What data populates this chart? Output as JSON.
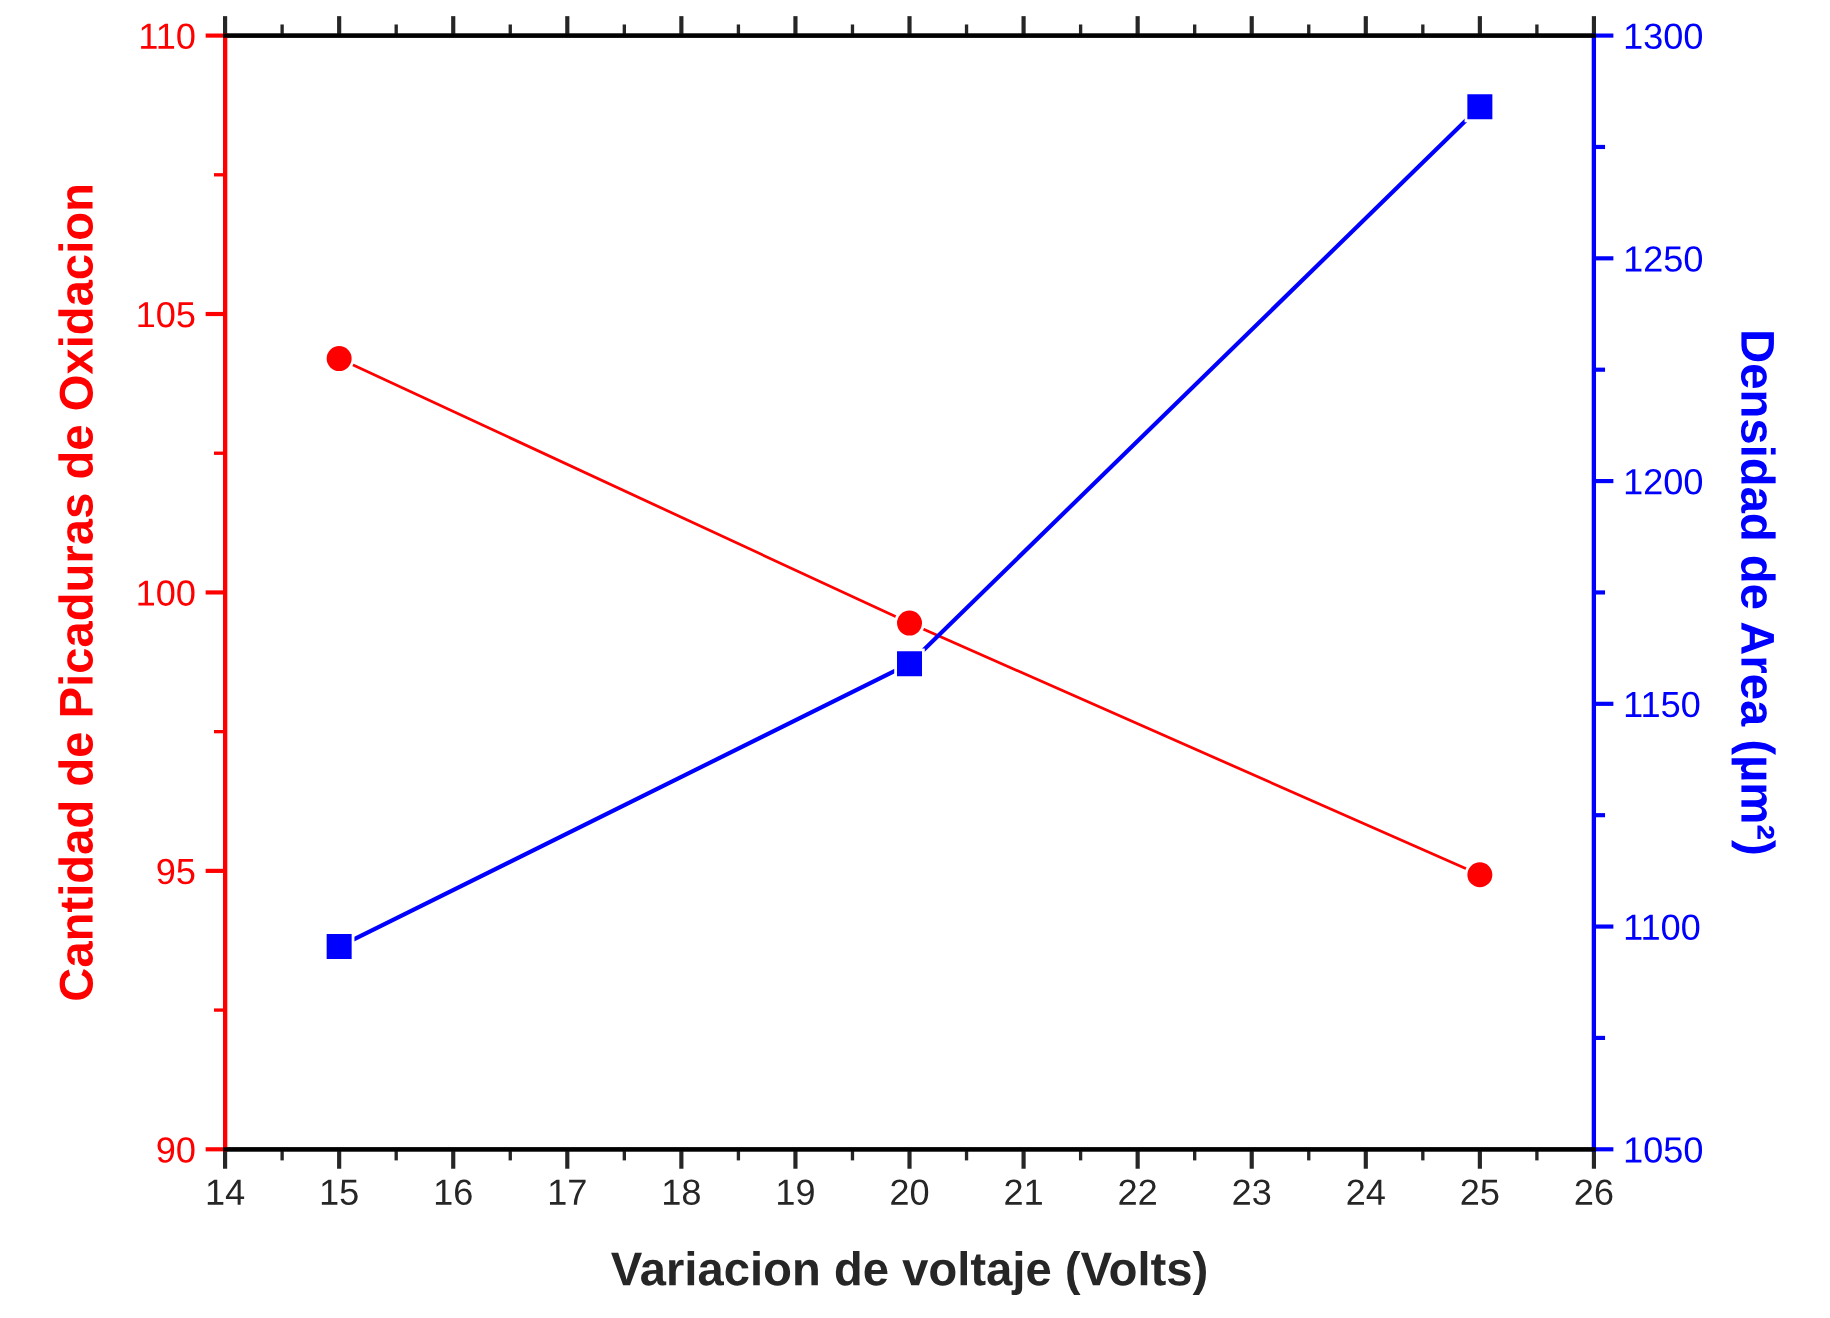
{
  "chart_data": {
    "type": "line",
    "xlabel": "Variacion de voltaje (Volts)",
    "ylabel": "Cantidad de Picaduras de Oxidacion",
    "y2label": "Densidad de Area (µm²)",
    "x": [
      15,
      20,
      25
    ],
    "series": [
      {
        "color": "#ff0000",
        "values": [
          104.2,
          99.45,
          94.93
        ],
        "marker": "circle"
      },
      {
        "color": "#0000ff",
        "values": [
          1095.5,
          1159,
          1284
        ],
        "marker": "square",
        "axis": "y2"
      }
    ],
    "xlim": [
      14,
      26
    ],
    "xticks": [
      14,
      15,
      16,
      17,
      18,
      19,
      20,
      21,
      22,
      23,
      24,
      25,
      26
    ],
    "ylim": [
      90,
      110
    ],
    "yticks": [
      90,
      95,
      100,
      105,
      110
    ],
    "y2lim": [
      1050,
      1300
    ],
    "y2ticks": [
      1050,
      1100,
      1150,
      1200,
      1250,
      1300
    ],
    "grid": false,
    "legend": false,
    "line_style": "solid"
  }
}
